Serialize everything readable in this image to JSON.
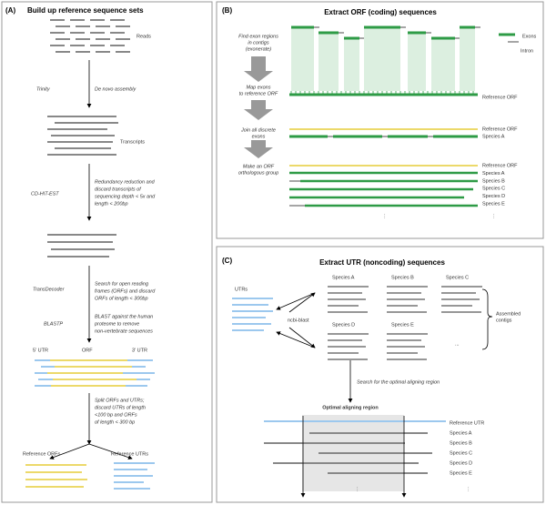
{
  "panel_a": {
    "label": "(A)",
    "title": "Build up reference sequence sets",
    "reads": "Reads",
    "trinity": {
      "tool": "Trinity",
      "desc": [
        "De novo assembly"
      ]
    },
    "transcripts": "Transcripts",
    "cdhit": {
      "tool": "CD-HIT-EST",
      "desc": [
        "Redundancy reduction and",
        "discard transcripts of",
        "sequencing depth < 5x and",
        "length < 200bp"
      ]
    },
    "transdecoder": {
      "tool": "TransDecoder",
      "desc": [
        "Search for open reading",
        "frames (ORFs) and discard",
        "ORFs of length < 300bp"
      ]
    },
    "blastp": {
      "tool": "BLASTP",
      "desc": [
        "BLAST against the human",
        "proteome to remove",
        "non-vertebrate sequences"
      ]
    },
    "utr5": "5' UTR",
    "orf": "ORF",
    "utr3": "3' UTR",
    "split": {
      "desc": [
        "Split ORFs and UTRs;",
        "discard UTRs of length",
        "<100 bp and ORFs",
        "of length < 300 bp"
      ]
    },
    "ref_orfs": "Reference ORFs",
    "ref_utrs": "Reference UTRs"
  },
  "panel_b": {
    "label": "(B)",
    "title": "Extract ORF (coding) sequences",
    "steps": [
      [
        "Find exon regions",
        "in contigs",
        "(exonerate)"
      ],
      [
        "Map exons",
        "to reference ORF"
      ],
      [
        "Join all discrete",
        "exons"
      ],
      [
        "Make an ORF",
        "orthologous group"
      ]
    ],
    "exons": "Exons",
    "intron": "Intron",
    "map_labels": [
      "Reference ORF"
    ],
    "join_labels": [
      "Reference ORF",
      "Species A"
    ],
    "group_labels": [
      "Reference ORF",
      "Species A",
      "Species B",
      "Species C",
      "Species D",
      "Species E"
    ],
    "more": "⋮"
  },
  "panel_c": {
    "label": "(C)",
    "title": "Extract UTR (noncoding) sequences",
    "utrs": "UTRs",
    "tool": "ncbi-blast",
    "species": [
      "Species A",
      "Species B",
      "Species C",
      "Species D",
      "Species E"
    ],
    "ellipsis": "...",
    "contigs": [
      "Assembled",
      "contigs"
    ],
    "search": "Search for the optimal aligning region",
    "optimal": "Optimal aligning region",
    "align_labels": [
      "Reference UTR",
      "Species A",
      "Species B",
      "Species C",
      "Species D",
      "Species E"
    ],
    "more": "⋮"
  }
}
